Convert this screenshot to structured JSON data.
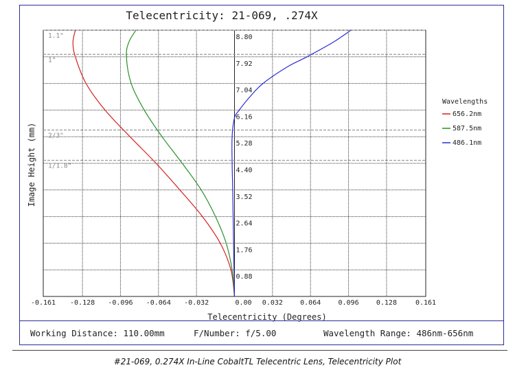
{
  "chart_data": {
    "type": "line",
    "title": "Telecentricity: 21-069, .274X",
    "xlabel": "Telecentricity (Degrees)",
    "ylabel": "Image Height (mm)",
    "xlim": [
      -0.161,
      0.161
    ],
    "ylim": [
      0,
      8.8
    ],
    "x_tick_labels": [
      "-0.161",
      "-0.128",
      "-0.096",
      "-0.064",
      "-0.032",
      "0.00",
      "0.032",
      "0.064",
      "0.096",
      "0.128",
      "0.161"
    ],
    "x_ticks": [
      -0.161,
      -0.128,
      -0.096,
      -0.064,
      -0.032,
      0.0,
      0.032,
      0.064,
      0.096,
      0.128,
      0.161
    ],
    "y_tick_labels": [
      "0.88",
      "1.76",
      "2.64",
      "3.52",
      "4.40",
      "5.28",
      "6.16",
      "7.04",
      "7.92",
      "8.80"
    ],
    "y_ticks": [
      0.88,
      1.76,
      2.64,
      3.52,
      4.4,
      5.28,
      6.16,
      7.04,
      7.92,
      8.8
    ],
    "grid": true,
    "legend_title": "Wavelengths",
    "legend_position": "right",
    "sensor_markers": [
      {
        "label": "1.1\"",
        "y": 8.8
      },
      {
        "label": "1\"",
        "y": 8.0
      },
      {
        "label": "2/3\"",
        "y": 5.5
      },
      {
        "label": "1/1.8\"",
        "y": 4.5
      }
    ],
    "series": [
      {
        "name": "656.2nm",
        "color": "#d42020",
        "points": [
          [
            0,
            0
          ],
          [
            -0.003,
            0.88
          ],
          [
            -0.012,
            1.76
          ],
          [
            -0.027,
            2.64
          ],
          [
            -0.046,
            3.52
          ],
          [
            -0.066,
            4.4
          ],
          [
            -0.088,
            5.28
          ],
          [
            -0.109,
            6.16
          ],
          [
            -0.125,
            7.04
          ],
          [
            -0.134,
            7.92
          ],
          [
            -0.136,
            8.4
          ],
          [
            -0.134,
            8.8
          ]
        ]
      },
      {
        "name": "587.5nm",
        "color": "#2a8f2a",
        "points": [
          [
            0,
            0
          ],
          [
            -0.002,
            0.88
          ],
          [
            -0.007,
            1.76
          ],
          [
            -0.016,
            2.64
          ],
          [
            -0.028,
            3.52
          ],
          [
            -0.044,
            4.4
          ],
          [
            -0.061,
            5.28
          ],
          [
            -0.076,
            6.16
          ],
          [
            -0.087,
            7.04
          ],
          [
            -0.091,
            7.92
          ],
          [
            -0.089,
            8.4
          ],
          [
            -0.083,
            8.8
          ]
        ]
      },
      {
        "name": "486.1nm",
        "color": "#2a2ad4",
        "points": [
          [
            0,
            0
          ],
          [
            -0.0008,
            1.76
          ],
          [
            -0.0015,
            3.52
          ],
          [
            -0.002,
            4.4
          ],
          [
            -0.002,
            5.28
          ],
          [
            0.0,
            5.9
          ],
          [
            0.004,
            6.16
          ],
          [
            0.013,
            6.6
          ],
          [
            0.024,
            7.04
          ],
          [
            0.045,
            7.6
          ],
          [
            0.061,
            7.92
          ],
          [
            0.083,
            8.4
          ],
          [
            0.098,
            8.8
          ]
        ]
      }
    ]
  },
  "footer": {
    "working_distance": "Working Distance: 110.00mm",
    "f_number": "F/Number: f/5.00",
    "wavelength_range": "Wavelength Range: 486nm-656nm"
  },
  "caption": "#21-069, 0.274X In-Line CobaltTL Telecentric Lens, Telecentricity Plot"
}
